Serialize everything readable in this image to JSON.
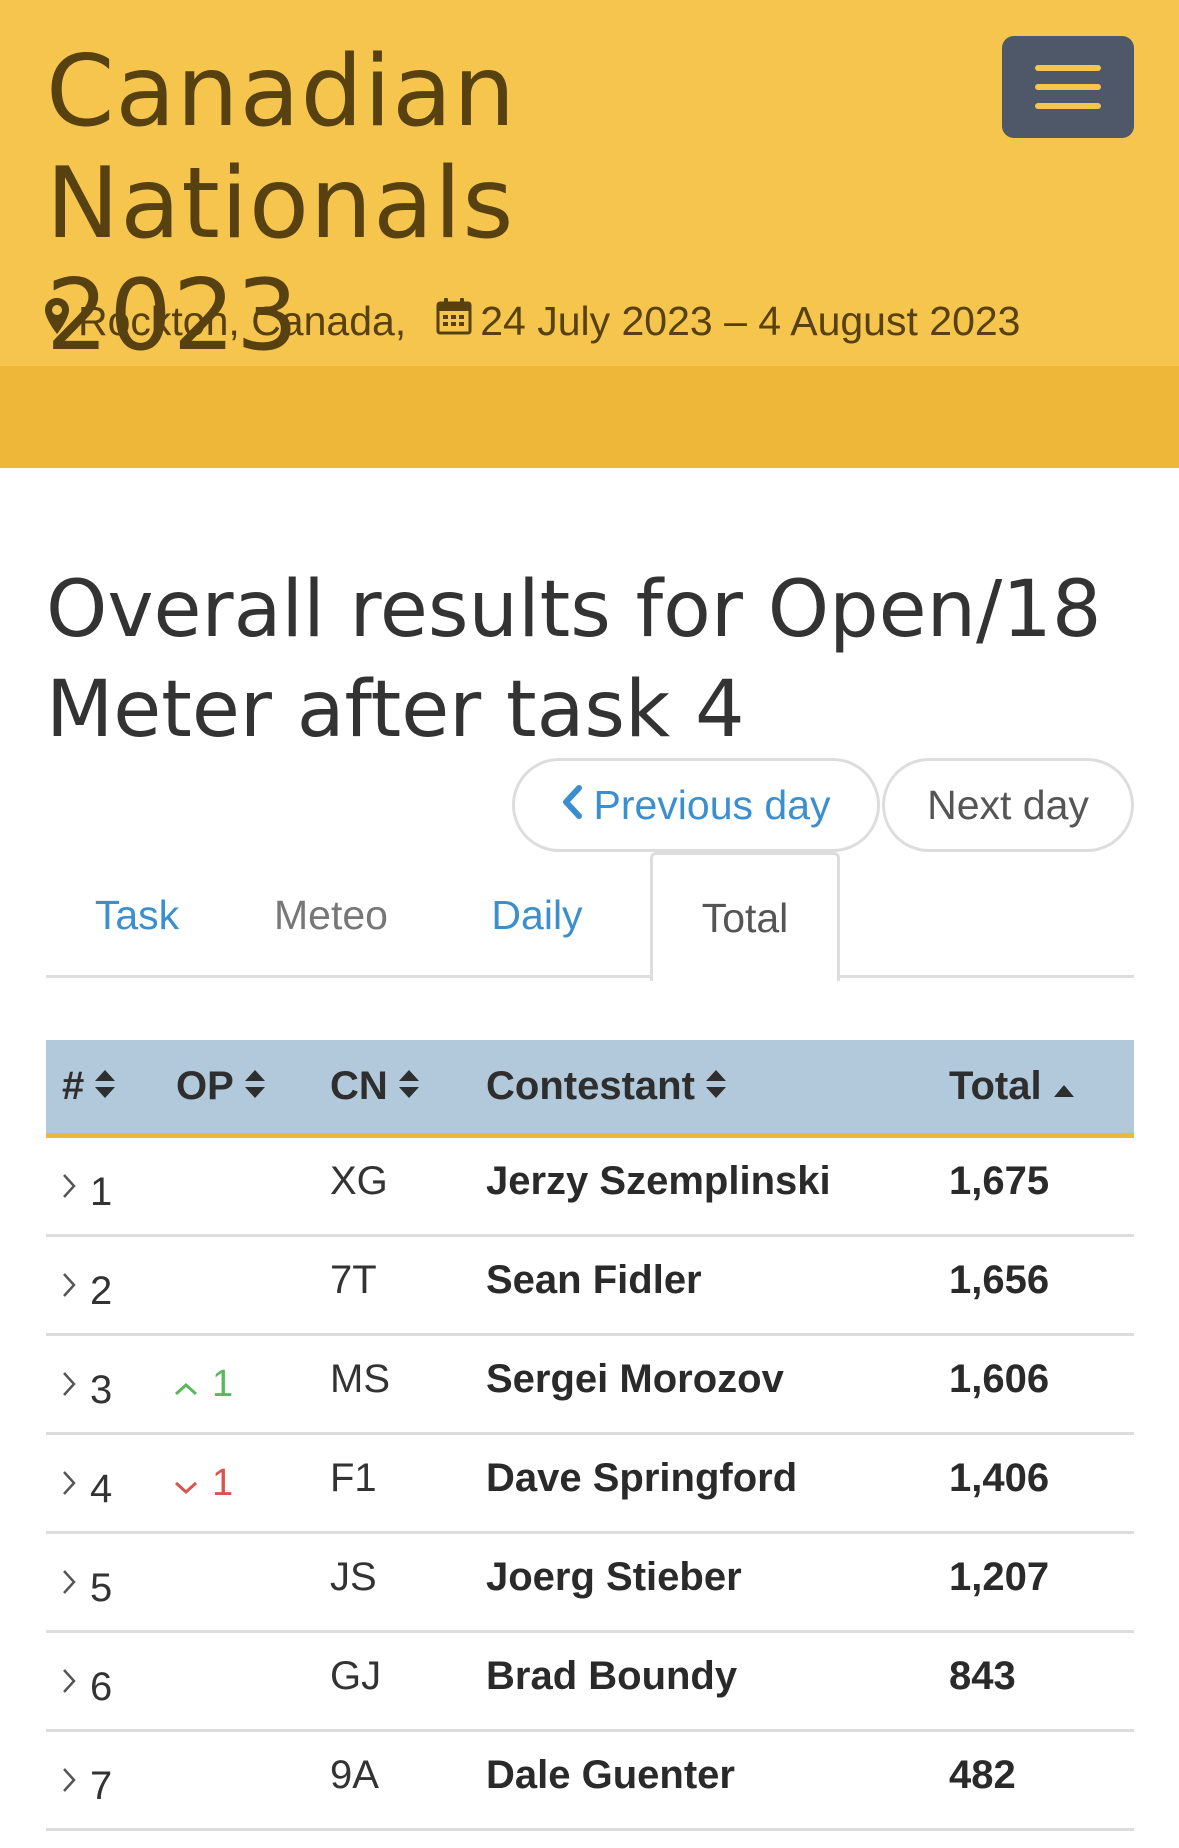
{
  "header": {
    "title_line1": "Canadian Nationals",
    "title_line2": "2023",
    "location": "Rockton, Canada,",
    "dates": "24 July 2023 – 4 August 2023",
    "icons": [
      "map-marker-icon",
      "calendar-icon",
      "hamburger-menu-icon"
    ]
  },
  "main": {
    "title_line1": "Overall results for Open/18",
    "title_line2": "Meter after task 4",
    "prev_day_label": "Previous day",
    "next_day_label": "Next day",
    "tabs": [
      {
        "label": "Task",
        "active": false
      },
      {
        "label": "Meteo",
        "active": false
      },
      {
        "label": "Daily",
        "active": false
      },
      {
        "label": "Total",
        "active": true
      }
    ]
  },
  "table": {
    "columns": [
      "#",
      "OP",
      "CN",
      "Contestant",
      "Total"
    ],
    "sorted_by": "Total",
    "rows": [
      {
        "rank": "1",
        "op": "",
        "op_dir": "",
        "cn": "XG",
        "name": "Jerzy Szemplinski",
        "total": "1,675"
      },
      {
        "rank": "2",
        "op": "",
        "op_dir": "",
        "cn": "7T",
        "name": "Sean Fidler",
        "total": "1,656"
      },
      {
        "rank": "3",
        "op": "1",
        "op_dir": "up",
        "cn": "MS",
        "name": "Sergei Morozov",
        "total": "1,606"
      },
      {
        "rank": "4",
        "op": "1",
        "op_dir": "down",
        "cn": "F1",
        "name": "Dave Springford",
        "total": "1,406"
      },
      {
        "rank": "5",
        "op": "",
        "op_dir": "",
        "cn": "JS",
        "name": "Joerg Stieber",
        "total": "1,207"
      },
      {
        "rank": "6",
        "op": "",
        "op_dir": "",
        "cn": "GJ",
        "name": "Brad Boundy",
        "total": "843"
      },
      {
        "rank": "7",
        "op": "",
        "op_dir": "",
        "cn": "9A",
        "name": "Dale Guenter",
        "total": "482"
      }
    ]
  },
  "colors": {
    "header_bg": "#f5c54e",
    "header_band": "#efb73a",
    "header_text": "#574111",
    "link": "#3b8fce",
    "table_head": "#b1c9da",
    "up": "#5cb85c",
    "down": "#d9534f"
  }
}
